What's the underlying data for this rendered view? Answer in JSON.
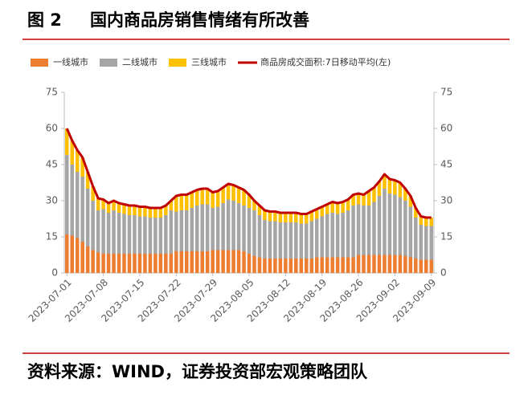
{
  "chart_data": {
    "type": "bar",
    "figure_label": "图 2",
    "title": "国内商品房销售情绪有所改善",
    "source": "资料来源：WIND，证券投资部宏观策略团队",
    "stacked": true,
    "categories": [
      "2023-07-01",
      null,
      null,
      null,
      null,
      null,
      null,
      "2023-07-08",
      null,
      null,
      null,
      null,
      null,
      null,
      "2023-07-15",
      null,
      null,
      null,
      null,
      null,
      null,
      "2023-07-22",
      null,
      null,
      null,
      null,
      null,
      null,
      "2023-07-29",
      null,
      null,
      null,
      null,
      null,
      null,
      "2023-08-05",
      null,
      null,
      null,
      null,
      null,
      null,
      "2023-08-12",
      null,
      null,
      null,
      null,
      null,
      null,
      "2023-08-19",
      null,
      null,
      null,
      null,
      null,
      null,
      "2023-08-26",
      null,
      null,
      null,
      null,
      null,
      null,
      "2023-09-02",
      null,
      null,
      null,
      null,
      null,
      null,
      "2023-09-09"
    ],
    "series": [
      {
        "name": "一线城市",
        "type": "bar",
        "color": "#ED7D31",
        "values": [
          16,
          15.5,
          14.5,
          13,
          11,
          9.5,
          8.5,
          8,
          8,
          8,
          8,
          8,
          8,
          8,
          8,
          8,
          8,
          8,
          8,
          8,
          8,
          9,
          9,
          9,
          9,
          9,
          9,
          9,
          9.5,
          9.5,
          9.5,
          9.5,
          9.5,
          9.5,
          9,
          8,
          7,
          6.5,
          6,
          6,
          6,
          6,
          6,
          6,
          6,
          6,
          6,
          6,
          6.5,
          6.5,
          6.5,
          6.5,
          6.5,
          6.5,
          6.5,
          6.5,
          7.5,
          7.5,
          7.5,
          7.5,
          7.5,
          7.5,
          7.5,
          7.5,
          7.5,
          7,
          6.5,
          6,
          5.5,
          5.5,
          5.5
        ]
      },
      {
        "name": "二线城市",
        "type": "bar",
        "color": "#A5A5A5",
        "values": [
          33,
          29.5,
          27.5,
          27,
          24,
          20.5,
          17.5,
          18.5,
          17,
          18,
          17,
          16.5,
          16,
          16,
          15.5,
          15.5,
          15,
          15,
          15,
          16,
          18,
          16.5,
          17,
          17,
          18,
          19,
          19.5,
          19.5,
          17.5,
          18,
          19.5,
          21,
          20.5,
          19.5,
          19,
          19,
          19,
          17.5,
          16,
          15.5,
          15.5,
          15,
          15,
          15,
          15,
          14.5,
          14.5,
          15.5,
          16,
          17,
          18,
          18.5,
          18,
          18.5,
          19.5,
          21.5,
          21,
          20.5,
          20.5,
          22,
          24.5,
          27.5,
          25.5,
          25,
          24,
          23,
          21,
          17,
          14.5,
          14,
          14
        ]
      },
      {
        "name": "三线城市",
        "type": "bar",
        "color": "#FFC000",
        "values": [
          11,
          10,
          9,
          8,
          7,
          6,
          5,
          4,
          4,
          4,
          4,
          4,
          4,
          4,
          4,
          4,
          4,
          4,
          4,
          4,
          4,
          6.5,
          6.5,
          6.5,
          6.5,
          6.5,
          6.5,
          6.5,
          6.5,
          6.5,
          6.5,
          6.5,
          6.5,
          6.5,
          6.5,
          5.5,
          4,
          4,
          4,
          4,
          4,
          4,
          4,
          4,
          4,
          4,
          4,
          4,
          4,
          4,
          4,
          4.5,
          4.5,
          4.5,
          4.5,
          4.5,
          4.5,
          4.5,
          6,
          6,
          6,
          6,
          6,
          6,
          6,
          5,
          4.5,
          4,
          3.5,
          3.5,
          3.5
        ]
      },
      {
        "name": "商品房成交面积:7日移动平均(左)",
        "type": "line",
        "axis": "y2",
        "color": "#C00000",
        "values": [
          60,
          55,
          51,
          48,
          42,
          36,
          31,
          30.5,
          29,
          30,
          29,
          28.5,
          28,
          28,
          27.5,
          27.5,
          27,
          27,
          27,
          28,
          30,
          32,
          32.5,
          32.5,
          33.5,
          34.5,
          35,
          35,
          33.5,
          34,
          35.5,
          37,
          36.5,
          35.5,
          34.5,
          32.5,
          30,
          28,
          26,
          25.5,
          25.5,
          25,
          25,
          25,
          25,
          24.5,
          24.5,
          25.5,
          26.5,
          27.5,
          28.5,
          29.5,
          29,
          29.5,
          30.5,
          32.5,
          33,
          32.5,
          34,
          35.5,
          38,
          41,
          39,
          38.5,
          37.5,
          35,
          32,
          27,
          23.5,
          23,
          23
        ]
      }
    ],
    "ylim": [
      0,
      75
    ],
    "yticks": [
      0,
      15,
      30,
      45,
      60,
      75
    ],
    "y2lim": [
      0,
      75
    ],
    "y2ticks": [
      0,
      15,
      30,
      45,
      60,
      75
    ],
    "legend": "top"
  }
}
